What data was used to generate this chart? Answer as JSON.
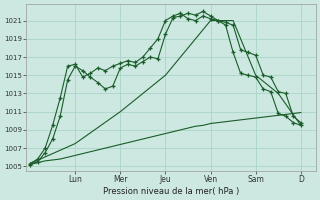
{
  "background_color": "#cce8e0",
  "grid_color": "#aad4c8",
  "line_color": "#1a5c2a",
  "title": "Pression niveau de la mer( hPa )",
  "ylabel_ticks": [
    1005,
    1007,
    1009,
    1011,
    1013,
    1015,
    1017,
    1019,
    1021
  ],
  "ylim": [
    1004.5,
    1022.8
  ],
  "day_labels": [
    "Lun",
    "Mer",
    "Jeu",
    "Ven",
    "Sam",
    "D"
  ],
  "day_positions": [
    6,
    12,
    18,
    24,
    30,
    36
  ],
  "xlim": [
    -0.5,
    38
  ],
  "series": [
    {
      "x": [
        0,
        1,
        2,
        3,
        4,
        5,
        6,
        7,
        8,
        9,
        10,
        11,
        12,
        13,
        14,
        15,
        16,
        17,
        18,
        19,
        20,
        21,
        22,
        23,
        24,
        25,
        26,
        27,
        28,
        29,
        30,
        31,
        32,
        33,
        34,
        35,
        36
      ],
      "y": [
        1005.2,
        1005.4,
        1005.6,
        1005.7,
        1005.8,
        1006.0,
        1006.2,
        1006.4,
        1006.6,
        1006.8,
        1007.0,
        1007.2,
        1007.4,
        1007.6,
        1007.8,
        1008.0,
        1008.2,
        1008.4,
        1008.6,
        1008.8,
        1009.0,
        1009.2,
        1009.4,
        1009.5,
        1009.7,
        1009.8,
        1009.9,
        1010.0,
        1010.1,
        1010.2,
        1010.3,
        1010.4,
        1010.5,
        1010.6,
        1010.7,
        1010.8,
        1010.9
      ],
      "marker": null,
      "linewidth": 0.8,
      "linestyle": "-"
    },
    {
      "x": [
        0,
        6,
        12,
        18,
        24,
        27,
        30,
        33,
        36
      ],
      "y": [
        1005.3,
        1007.5,
        1011.0,
        1015.0,
        1021.0,
        1021.0,
        1015.0,
        1013.0,
        1009.5
      ],
      "marker": null,
      "linewidth": 0.8,
      "linestyle": "-"
    },
    {
      "x": [
        0,
        1,
        2,
        3,
        4,
        5,
        6,
        7,
        8,
        9,
        10,
        11,
        12,
        13,
        14,
        15,
        16,
        17,
        18,
        19,
        20,
        21,
        22,
        23,
        24,
        25,
        26,
        27,
        28,
        29,
        30,
        31,
        32,
        33,
        34,
        35,
        36
      ],
      "y": [
        1005.2,
        1005.5,
        1006.5,
        1008.0,
        1010.5,
        1014.5,
        1016.0,
        1015.5,
        1014.8,
        1014.2,
        1013.5,
        1013.8,
        1015.8,
        1016.2,
        1016.0,
        1016.5,
        1017.0,
        1016.8,
        1019.5,
        1021.3,
        1021.5,
        1021.8,
        1021.6,
        1022.0,
        1021.5,
        1021.0,
        1020.5,
        1017.5,
        1015.2,
        1015.0,
        1014.8,
        1013.5,
        1013.2,
        1010.8,
        1010.5,
        1009.8,
        1009.5
      ],
      "marker": "+",
      "linewidth": 0.8,
      "linestyle": "-"
    },
    {
      "x": [
        0,
        1,
        2,
        3,
        4,
        5,
        6,
        7,
        8,
        9,
        10,
        11,
        12,
        13,
        14,
        15,
        16,
        17,
        18,
        19,
        20,
        21,
        22,
        23,
        24,
        25,
        26,
        27,
        28,
        29,
        30,
        31,
        32,
        33,
        34,
        35,
        36
      ],
      "y": [
        1005.3,
        1005.8,
        1007.0,
        1009.5,
        1012.5,
        1016.0,
        1016.2,
        1014.8,
        1015.2,
        1015.8,
        1015.5,
        1016.0,
        1016.3,
        1016.6,
        1016.4,
        1017.0,
        1018.0,
        1019.0,
        1021.0,
        1021.5,
        1021.8,
        1021.2,
        1021.0,
        1021.5,
        1021.2,
        1021.0,
        1020.8,
        1020.5,
        1017.8,
        1017.5,
        1017.2,
        1015.0,
        1014.8,
        1013.2,
        1013.0,
        1010.5,
        1009.8
      ],
      "marker": "+",
      "linewidth": 0.8,
      "linestyle": "-"
    }
  ]
}
